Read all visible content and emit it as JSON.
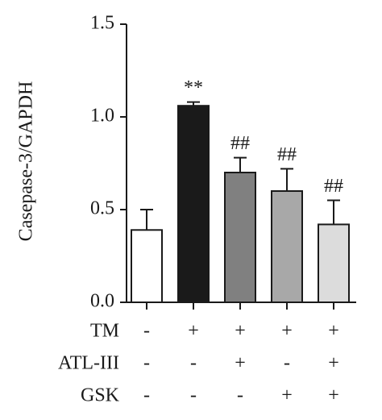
{
  "chart_data": {
    "type": "bar",
    "y_label": "Casepase-3/GAPDH",
    "values": [
      0.39,
      1.06,
      0.7,
      0.6,
      0.42
    ],
    "errors": [
      0.11,
      0.02,
      0.08,
      0.12,
      0.13
    ],
    "colors": [
      "#ffffff",
      "#1a1a1a",
      "#808080",
      "#a8a8a8",
      "#dcdcdc"
    ],
    "annotations": [
      null,
      "**",
      "##",
      "##",
      "##"
    ],
    "ylim": [
      0,
      1.5
    ],
    "yticks": [
      {
        "value": 0,
        "label": "0.0"
      },
      {
        "value": 0.5,
        "label": "0.5"
      },
      {
        "value": 1,
        "label": "1.0"
      },
      {
        "value": 1.5,
        "label": "1.5"
      }
    ],
    "treatment_table": [
      {
        "name": "TM",
        "signs": [
          "-",
          "+",
          "+",
          "+",
          "+"
        ]
      },
      {
        "name": "ATL-III",
        "signs": [
          "-",
          "-",
          "+",
          "-",
          "+"
        ]
      },
      {
        "name": "GSK",
        "signs": [
          "-",
          "-",
          "-",
          "+",
          "+"
        ]
      }
    ]
  }
}
